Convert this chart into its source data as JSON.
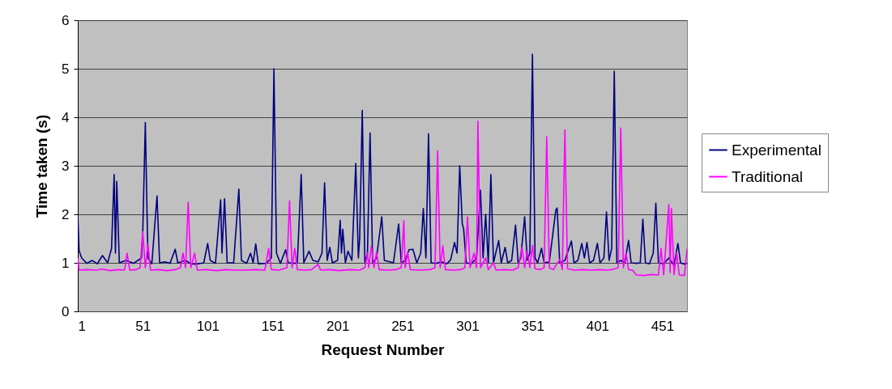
{
  "chart_data": {
    "type": "line",
    "xlabel": "Request Number",
    "ylabel": "Time taken (s)",
    "xlim": [
      1,
      470
    ],
    "xticks": [
      1,
      51,
      101,
      151,
      201,
      251,
      301,
      351,
      401,
      451
    ],
    "ylim": [
      0,
      6
    ],
    "yticks": [
      0,
      1,
      2,
      3,
      4,
      5,
      6
    ],
    "grid": "y",
    "legend": "right",
    "marker": "none",
    "line_style": "solid",
    "series": [
      {
        "name": "Experimental",
        "color": "#000080",
        "x": [
          1,
          2,
          4,
          8,
          12,
          16,
          20,
          24,
          27,
          29,
          30,
          31,
          33,
          38,
          44,
          50,
          51,
          53,
          55,
          58,
          62,
          64,
          68,
          72,
          76,
          78,
          84,
          88,
          92,
          98,
          101,
          103,
          107,
          111,
          112,
          114,
          116,
          121,
          125,
          127,
          131,
          134,
          136,
          138,
          140,
          146,
          150,
          152,
          154,
          157,
          161,
          163,
          167,
          170,
          173,
          175,
          179,
          182,
          186,
          189,
          191,
          193,
          195,
          197,
          201,
          203,
          204,
          205,
          207,
          209,
          212,
          215,
          217,
          218,
          220,
          222,
          224,
          226,
          228,
          231,
          235,
          237,
          240,
          244,
          248,
          250,
          253,
          256,
          259,
          262,
          265,
          267,
          269,
          271,
          273,
          277,
          281,
          285,
          288,
          291,
          293,
          295,
          297,
          298,
          300,
          304,
          308,
          311,
          313,
          315,
          317,
          319,
          321,
          325,
          327,
          330,
          332,
          335,
          338,
          340,
          342,
          345,
          347,
          349,
          351,
          353,
          355,
          358,
          360,
          364,
          369,
          370,
          372,
          376,
          381,
          383,
          386,
          389,
          391,
          393,
          395,
          398,
          401,
          403,
          406,
          408,
          410,
          412,
          414,
          416,
          419,
          422,
          425,
          427,
          431,
          434,
          436,
          438,
          441,
          444,
          446,
          448,
          452,
          456,
          460,
          463,
          465,
          468,
          470
        ],
        "values": [
          1.99,
          1.25,
          1.1,
          0.99,
          1.05,
          0.98,
          1.15,
          1.0,
          1.3,
          2.82,
          1.2,
          2.68,
          1.0,
          1.05,
          0.99,
          1.1,
          1.6,
          3.89,
          1.1,
          0.98,
          2.38,
          1.0,
          1.02,
          0.99,
          1.28,
          1.0,
          1.05,
          0.98,
          0.97,
          1.0,
          1.4,
          1.05,
          0.99,
          2.3,
          1.2,
          2.32,
          1.0,
          1.0,
          2.52,
          1.05,
          0.99,
          1.2,
          1.0,
          1.39,
          0.98,
          0.99,
          1.1,
          5.0,
          1.2,
          0.99,
          1.27,
          1.0,
          0.99,
          1.0,
          2.82,
          1.0,
          1.24,
          1.05,
          1.02,
          1.2,
          2.65,
          1.05,
          1.32,
          1.0,
          1.05,
          1.88,
          1.2,
          1.69,
          1.0,
          1.24,
          1.05,
          3.05,
          1.1,
          1.5,
          4.14,
          1.0,
          1.2,
          3.68,
          1.0,
          1.1,
          1.95,
          1.05,
          1.03,
          1.0,
          1.8,
          1.0,
          1.05,
          1.27,
          1.28,
          1.0,
          1.2,
          2.12,
          1.1,
          3.66,
          1.0,
          0.99,
          1.02,
          0.98,
          1.06,
          1.42,
          1.2,
          3.0,
          1.8,
          1.71,
          1.0,
          0.98,
          1.1,
          2.5,
          1.1,
          2.0,
          1.0,
          2.82,
          1.0,
          1.46,
          1.0,
          1.32,
          1.0,
          1.05,
          1.78,
          1.0,
          1.1,
          1.95,
          1.05,
          1.2,
          5.3,
          1.1,
          1.0,
          1.3,
          1.0,
          1.02,
          2.09,
          2.13,
          1.0,
          1.05,
          1.45,
          1.0,
          1.05,
          1.4,
          1.1,
          1.42,
          1.0,
          1.05,
          1.4,
          1.0,
          1.1,
          2.05,
          1.05,
          1.3,
          4.95,
          1.0,
          1.05,
          1.0,
          1.46,
          1.0,
          0.99,
          1.0,
          1.9,
          1.0,
          0.98,
          1.2,
          2.23,
          1.0,
          0.98,
          1.1,
          0.95,
          1.4,
          1.0,
          0.97,
          0.99
        ]
      },
      {
        "name": "Traditional",
        "color": "#ff00ff",
        "x": [
          1,
          2,
          8,
          15,
          20,
          26,
          32,
          37,
          39,
          41,
          46,
          49,
          51,
          53,
          55,
          57,
          63,
          70,
          76,
          80,
          82,
          84,
          86,
          88,
          91,
          93,
          100,
          108,
          115,
          122,
          130,
          138,
          145,
          148,
          150,
          156,
          162,
          164,
          166,
          168,
          170,
          176,
          181,
          186,
          188,
          195,
          202,
          210,
          218,
          222,
          224,
          225,
          227,
          229,
          231,
          233,
          240,
          246,
          250,
          252,
          253,
          255,
          257,
          264,
          272,
          276,
          278,
          280,
          282,
          284,
          290,
          296,
          299,
          301,
          303,
          306,
          308,
          309,
          311,
          315,
          317,
          321,
          323,
          330,
          336,
          340,
          343,
          345,
          347,
          349,
          351,
          353,
          357,
          360,
          362,
          364,
          367,
          372,
          374,
          376,
          378,
          383,
          390,
          396,
          402,
          408,
          412,
          417,
          419,
          421,
          423,
          425,
          428,
          431,
          437,
          443,
          448,
          450,
          452,
          456,
          457,
          458,
          460,
          462,
          464,
          468,
          470
        ],
        "values": [
          1.1,
          0.85,
          0.86,
          0.85,
          0.87,
          0.84,
          0.86,
          0.85,
          1.2,
          0.85,
          0.86,
          0.9,
          1.64,
          0.9,
          1.39,
          0.85,
          0.86,
          0.84,
          0.86,
          0.9,
          1.2,
          0.9,
          2.25,
          0.9,
          1.2,
          0.85,
          0.86,
          0.84,
          0.86,
          0.85,
          0.85,
          0.86,
          0.85,
          1.3,
          0.86,
          0.85,
          0.9,
          2.28,
          0.9,
          1.3,
          0.86,
          0.85,
          0.86,
          0.97,
          0.85,
          0.86,
          0.84,
          0.86,
          0.85,
          0.9,
          1.2,
          0.9,
          1.35,
          0.9,
          1.22,
          0.86,
          0.85,
          0.86,
          0.9,
          1.87,
          0.9,
          1.21,
          0.86,
          0.85,
          0.86,
          0.9,
          3.31,
          0.9,
          1.35,
          0.86,
          0.85,
          0.86,
          0.9,
          1.95,
          0.9,
          1.2,
          0.9,
          3.92,
          0.9,
          1.1,
          0.86,
          1.0,
          0.85,
          0.86,
          0.85,
          0.9,
          1.32,
          0.9,
          1.24,
          0.9,
          1.36,
          0.88,
          0.86,
          0.9,
          3.6,
          0.9,
          0.86,
          1.07,
          0.86,
          3.74,
          0.88,
          0.85,
          0.86,
          0.85,
          0.86,
          0.85,
          0.86,
          0.9,
          3.78,
          0.9,
          1.21,
          0.86,
          0.85,
          0.75,
          0.74,
          0.76,
          0.75,
          1.3,
          0.75,
          2.2,
          0.8,
          2.12,
          0.76,
          1.21,
          0.75,
          0.74,
          1.29
        ]
      }
    ]
  }
}
